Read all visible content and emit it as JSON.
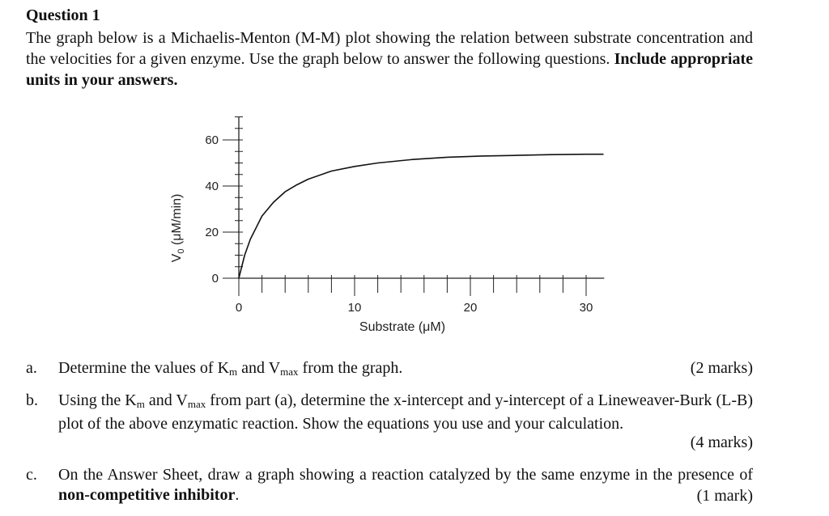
{
  "question": {
    "title": "Question 1",
    "intro_text": "The graph below is a Michaelis-Menton (M-M) plot showing the relation between substrate concentration and the velocities for a given enzyme. Use the graph below to answer the following questions. ",
    "intro_bold": "Include appropriate units in your answers."
  },
  "chart_data": {
    "type": "line",
    "xlabel": "Substrate (μM)",
    "ylabel_main": "V",
    "ylabel_sub": "0",
    "ylabel_units": "(μM/min)",
    "xlim": [
      0,
      31
    ],
    "ylim": [
      0,
      70
    ],
    "x_ticks": [
      "0",
      "10",
      "20",
      "30"
    ],
    "y_ticks": [
      "0",
      "20",
      "40",
      "60"
    ],
    "x_tick_values": [
      0,
      10,
      20,
      30
    ],
    "y_tick_values": [
      0,
      20,
      40,
      60
    ],
    "x_minor_step": 2,
    "y_minor_step": 5,
    "series": [
      {
        "x": [
          0,
          0.5,
          1,
          1.5,
          2,
          3,
          4,
          5,
          6,
          8,
          10,
          12,
          15,
          18,
          21,
          24,
          27,
          30,
          31.5
        ],
        "y": [
          0,
          10,
          17,
          22,
          27,
          33,
          37.5,
          40.5,
          43,
          46.5,
          48.5,
          50,
          51.5,
          52.5,
          53,
          53.3,
          53.6,
          53.8,
          53.8
        ]
      }
    ]
  },
  "parts": [
    {
      "letter": "a.",
      "line1_pre": "Determine the values of K",
      "km": "m",
      "and": " and V",
      "vmax": "max",
      "line1_post": " from the graph.",
      "marks": "(2 marks)"
    },
    {
      "letter": "b.",
      "line1_pre": "Using the K",
      "km": "m",
      "and": " and V",
      "vmax": "max",
      "line1_post": " from part (a), determine the x-intercept and y-intercept of a Lineweaver-Burk (L-B) plot of the above enzymatic reaction. Show the equations you use and your calculation.",
      "marks": "(4 marks)"
    },
    {
      "letter": "c.",
      "text_pre": "On the Answer Sheet, draw a graph showing a reaction catalyzed by the same enzyme in the presence of ",
      "text_bold": "non-competitive inhibitor",
      "text_post": ".",
      "marks": "(1 mark)"
    }
  ]
}
